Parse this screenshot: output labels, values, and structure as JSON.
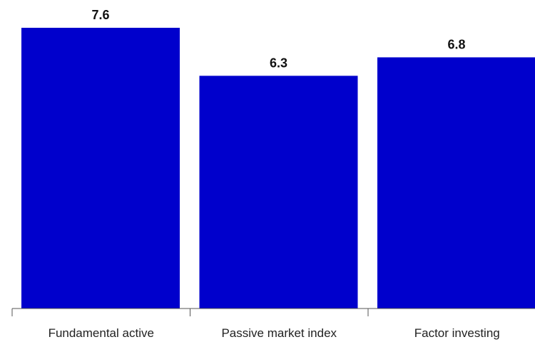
{
  "chart_data": {
    "type": "bar",
    "categories": [
      "Fundamental active",
      "Passive market index",
      "Factor investing"
    ],
    "values": [
      7.6,
      6.3,
      6.8
    ],
    "data_labels": [
      "7.6",
      "6.3",
      "6.8"
    ],
    "title": "",
    "xlabel": "",
    "ylabel": "",
    "ylim": [
      0,
      7.6
    ],
    "grid": false,
    "legend": "none",
    "bar_color": "#0000CC"
  }
}
